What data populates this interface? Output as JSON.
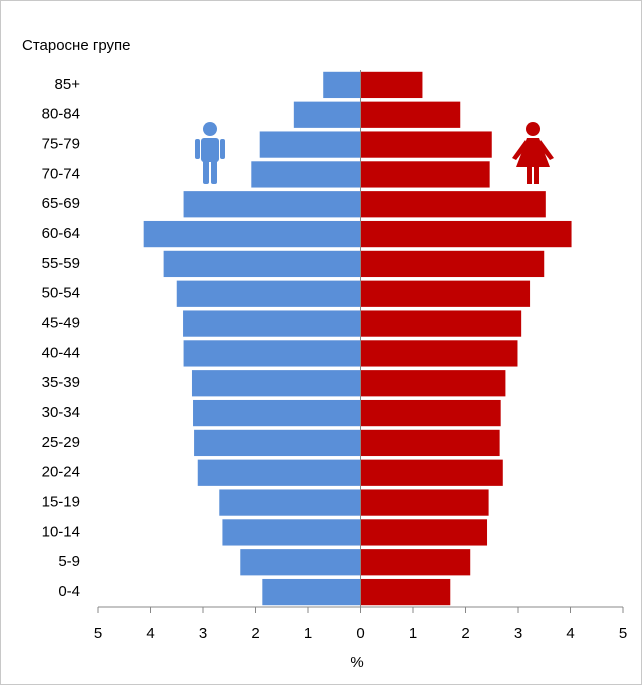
{
  "chart_data": {
    "type": "pyramid",
    "title": "Старосне групе",
    "x_label": "%",
    "categories": [
      "0-4",
      "5-9",
      "10-14",
      "15-19",
      "20-24",
      "25-29",
      "30-34",
      "35-39",
      "40-44",
      "45-49",
      "50-54",
      "55-59",
      "60-64",
      "65-69",
      "70-74",
      "75-79",
      "80-84",
      "85+"
    ],
    "series": [
      {
        "color": "#5a8fd8",
        "side": "left",
        "values": [
          1.87,
          2.29,
          2.63,
          2.69,
          3.1,
          3.17,
          3.19,
          3.21,
          3.37,
          3.38,
          3.5,
          3.75,
          4.13,
          3.37,
          2.08,
          1.92,
          1.27,
          0.71
        ]
      },
      {
        "color": "#c00000",
        "side": "right",
        "values": [
          1.71,
          2.09,
          2.41,
          2.44,
          2.71,
          2.65,
          2.67,
          2.76,
          2.99,
          3.06,
          3.23,
          3.5,
          4.02,
          3.53,
          2.46,
          2.5,
          1.9,
          1.18
        ]
      }
    ],
    "xlim": [
      -5,
      5
    ],
    "xticks": [
      {
        "value": -5,
        "label": "5"
      },
      {
        "value": -4,
        "label": "4"
      },
      {
        "value": -3,
        "label": "3"
      },
      {
        "value": -2,
        "label": "2"
      },
      {
        "value": -1,
        "label": "1"
      },
      0,
      1,
      2,
      3,
      4,
      5
    ]
  }
}
